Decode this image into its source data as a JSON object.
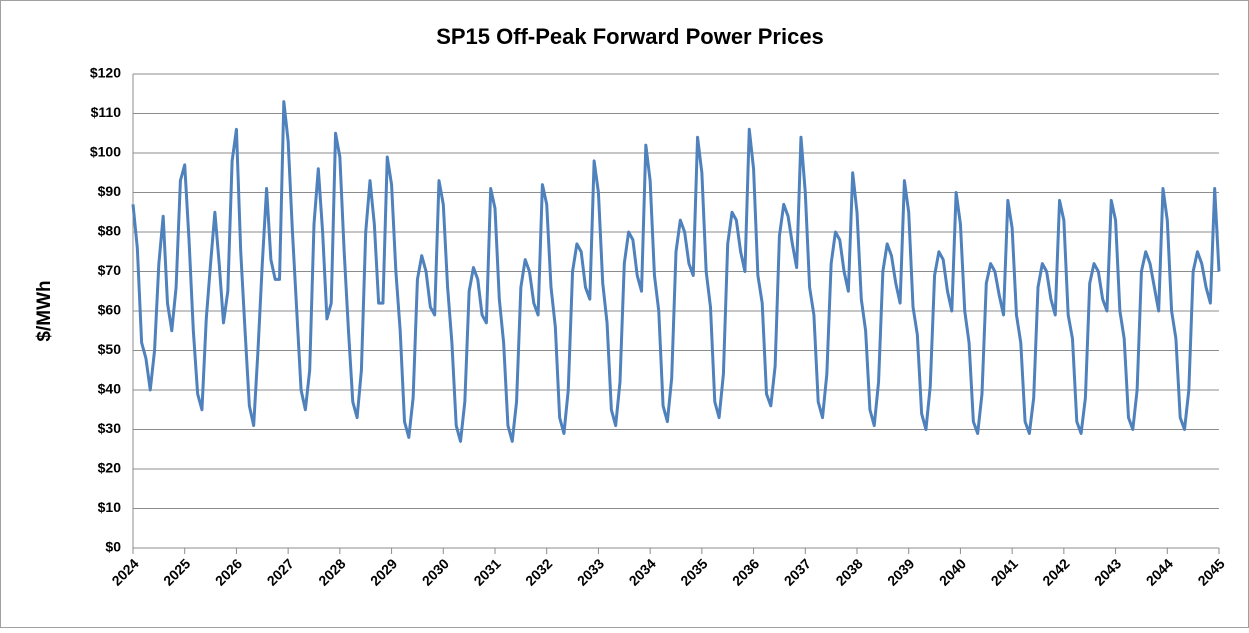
{
  "chart_data": {
    "type": "line",
    "title": "SP15 Off-Peak Forward Power Prices",
    "y_label": "$/MWh",
    "categories": [
      "2024",
      null,
      null,
      null,
      null,
      null,
      null,
      null,
      null,
      null,
      null,
      null,
      "2025",
      null,
      null,
      null,
      null,
      null,
      null,
      null,
      null,
      null,
      null,
      null,
      "2026",
      null,
      null,
      null,
      null,
      null,
      null,
      null,
      null,
      null,
      null,
      null,
      "2027",
      null,
      null,
      null,
      null,
      null,
      null,
      null,
      null,
      null,
      null,
      null,
      "2028",
      null,
      null,
      null,
      null,
      null,
      null,
      null,
      null,
      null,
      null,
      null,
      "2029",
      null,
      null,
      null,
      null,
      null,
      null,
      null,
      null,
      null,
      null,
      null,
      "2030",
      null,
      null,
      null,
      null,
      null,
      null,
      null,
      null,
      null,
      null,
      null,
      "2031",
      null,
      null,
      null,
      null,
      null,
      null,
      null,
      null,
      null,
      null,
      null,
      "2032",
      null,
      null,
      null,
      null,
      null,
      null,
      null,
      null,
      null,
      null,
      null,
      "2033",
      null,
      null,
      null,
      null,
      null,
      null,
      null,
      null,
      null,
      null,
      null,
      "2034",
      null,
      null,
      null,
      null,
      null,
      null,
      null,
      null,
      null,
      null,
      null,
      "2035",
      null,
      null,
      null,
      null,
      null,
      null,
      null,
      null,
      null,
      null,
      null,
      "2036",
      null,
      null,
      null,
      null,
      null,
      null,
      null,
      null,
      null,
      null,
      null,
      "2037",
      null,
      null,
      null,
      null,
      null,
      null,
      null,
      null,
      null,
      null,
      null,
      "2038",
      null,
      null,
      null,
      null,
      null,
      null,
      null,
      null,
      null,
      null,
      null,
      "2039",
      null,
      null,
      null,
      null,
      null,
      null,
      null,
      null,
      null,
      null,
      null,
      "2040",
      null,
      null,
      null,
      null,
      null,
      null,
      null,
      null,
      null,
      null,
      null,
      "2041",
      null,
      null,
      null,
      null,
      null,
      null,
      null,
      null,
      null,
      null,
      null,
      "2042",
      null,
      null,
      null,
      null,
      null,
      null,
      null,
      null,
      null,
      null,
      null,
      "2043",
      null,
      null,
      null,
      null,
      null,
      null,
      null,
      null,
      null,
      null,
      null,
      "2044",
      null,
      null,
      null,
      null,
      null,
      null,
      null,
      null,
      null,
      null,
      null,
      "2045"
    ],
    "values": [
      87,
      76,
      52,
      48,
      40,
      50,
      72,
      84,
      62,
      55,
      66,
      93,
      97,
      78,
      55,
      39,
      35,
      58,
      72,
      85,
      72,
      57,
      65,
      98,
      106,
      75,
      55,
      36,
      31,
      50,
      72,
      91,
      73,
      68,
      68,
      113,
      103,
      80,
      60,
      40,
      35,
      45,
      82,
      96,
      80,
      58,
      62,
      105,
      99,
      75,
      55,
      37,
      33,
      45,
      80,
      93,
      82,
      62,
      62,
      99,
      92,
      70,
      55,
      32,
      28,
      38,
      68,
      74,
      70,
      61,
      59,
      93,
      87,
      66,
      52,
      31,
      27,
      37,
      65,
      71,
      68,
      59,
      57,
      91,
      86,
      63,
      52,
      31,
      27,
      37,
      66,
      73,
      70,
      62,
      59,
      92,
      87,
      66,
      56,
      33,
      29,
      40,
      70,
      77,
      75,
      66,
      63,
      98,
      90,
      67,
      57,
      35,
      31,
      42,
      72,
      80,
      78,
      69,
      65,
      102,
      93,
      69,
      60,
      36,
      32,
      43,
      75,
      83,
      80,
      72,
      69,
      104,
      95,
      70,
      61,
      37,
      33,
      44,
      77,
      85,
      83,
      75,
      70,
      106,
      96,
      69,
      62,
      39,
      36,
      46,
      79,
      87,
      84,
      77,
      71,
      104,
      90,
      66,
      59,
      37,
      33,
      44,
      72,
      80,
      78,
      70,
      65,
      95,
      85,
      63,
      55,
      35,
      31,
      42,
      70,
      77,
      74,
      67,
      62,
      93,
      85,
      61,
      54,
      34,
      30,
      41,
      69,
      75,
      73,
      65,
      60,
      90,
      82,
      60,
      52,
      32,
      29,
      39,
      67,
      72,
      70,
      64,
      59,
      88,
      81,
      59,
      52,
      32,
      29,
      38,
      66,
      72,
      70,
      63,
      59,
      88,
      83,
      59,
      53,
      32,
      29,
      38,
      67,
      72,
      70,
      63,
      60,
      88,
      83,
      60,
      53,
      33,
      30,
      40,
      70,
      75,
      72,
      66,
      60,
      91,
      83,
      60,
      53,
      33,
      30,
      40,
      70,
      75,
      72,
      66,
      62,
      91,
      70
    ],
    "color": "#4f81bd",
    "ylim": [
      0,
      120
    ],
    "yticks": [
      {
        "value": 0,
        "label": "$0"
      },
      {
        "value": 10,
        "label": "$10"
      },
      {
        "value": 20,
        "label": "$20"
      },
      {
        "value": 30,
        "label": "$30"
      },
      {
        "value": 40,
        "label": "$40"
      },
      {
        "value": 50,
        "label": "$50"
      },
      {
        "value": 60,
        "label": "$60"
      },
      {
        "value": 70,
        "label": "$70"
      },
      {
        "value": 80,
        "label": "$80"
      },
      {
        "value": 90,
        "label": "$90"
      },
      {
        "value": 100,
        "label": "$100"
      },
      {
        "value": 110,
        "label": "$110"
      },
      {
        "value": 120,
        "label": "$120"
      }
    ],
    "grid": true
  }
}
